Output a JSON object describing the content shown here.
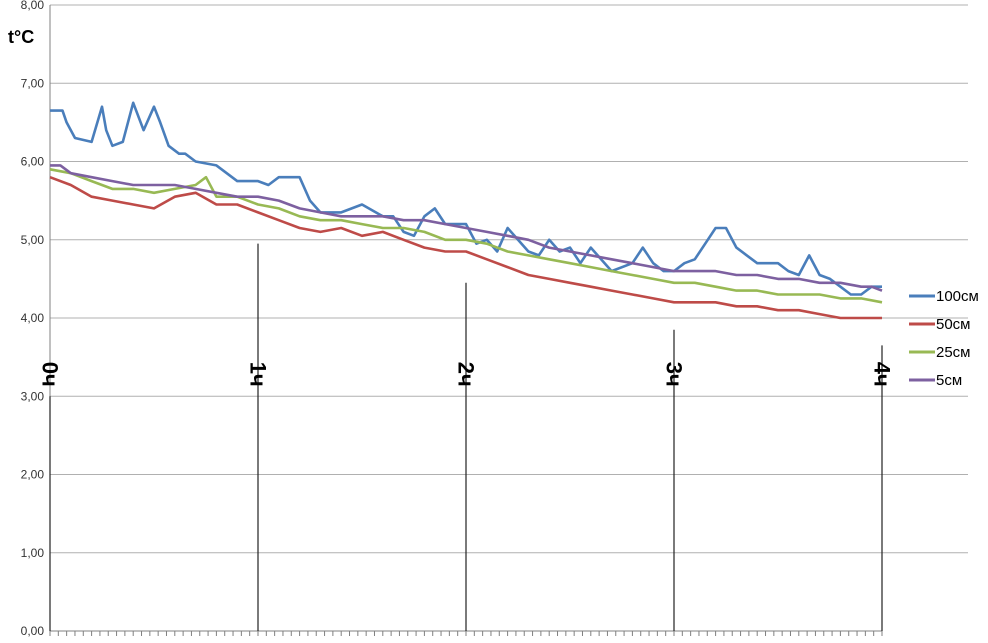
{
  "chart_data": {
    "type": "line",
    "ylabel": "t°C",
    "ylim": [
      0,
      8
    ],
    "ytick_labels": [
      "0,00",
      "1,00",
      "2,00",
      "3,00",
      "4,00",
      "5,00",
      "6,00",
      "7,00",
      "8,00"
    ],
    "xlim": [
      0,
      4
    ],
    "hour_markers": [
      {
        "label": "0ч",
        "x": 0,
        "top": 3.0
      },
      {
        "label": "1ч",
        "x": 1,
        "top": 4.95
      },
      {
        "label": "2ч",
        "x": 2,
        "top": 4.45
      },
      {
        "label": "3ч",
        "x": 3,
        "top": 3.85
      },
      {
        "label": "4ч",
        "x": 4,
        "top": 3.65
      }
    ],
    "legend_position": "right",
    "grid": true,
    "series": [
      {
        "name": "100см",
        "color": "#4a7ebb",
        "x": [
          0,
          0.06,
          0.08,
          0.12,
          0.2,
          0.25,
          0.27,
          0.3,
          0.35,
          0.4,
          0.45,
          0.5,
          0.53,
          0.57,
          0.62,
          0.65,
          0.7,
          0.8,
          0.9,
          1.0,
          1.05,
          1.1,
          1.2,
          1.25,
          1.3,
          1.4,
          1.5,
          1.6,
          1.65,
          1.7,
          1.75,
          1.8,
          1.85,
          1.9,
          2.0,
          2.05,
          2.1,
          2.15,
          2.2,
          2.3,
          2.35,
          2.4,
          2.45,
          2.5,
          2.55,
          2.6,
          2.7,
          2.8,
          2.85,
          2.9,
          2.95,
          3.0,
          3.05,
          3.1,
          3.15,
          3.2,
          3.25,
          3.3,
          3.35,
          3.4,
          3.5,
          3.55,
          3.6,
          3.65,
          3.7,
          3.75,
          3.8,
          3.85,
          3.9,
          3.95,
          4.0
        ],
        "values": [
          6.65,
          6.65,
          6.5,
          6.3,
          6.25,
          6.7,
          6.4,
          6.2,
          6.25,
          6.75,
          6.4,
          6.7,
          6.5,
          6.2,
          6.1,
          6.1,
          6.0,
          5.95,
          5.75,
          5.75,
          5.7,
          5.8,
          5.8,
          5.5,
          5.35,
          5.35,
          5.45,
          5.3,
          5.3,
          5.1,
          5.05,
          5.3,
          5.4,
          5.2,
          5.2,
          4.95,
          5.0,
          4.85,
          5.15,
          4.85,
          4.8,
          5.0,
          4.85,
          4.9,
          4.7,
          4.9,
          4.6,
          4.7,
          4.9,
          4.7,
          4.6,
          4.6,
          4.7,
          4.75,
          4.95,
          5.15,
          5.15,
          4.9,
          4.8,
          4.7,
          4.7,
          4.6,
          4.55,
          4.8,
          4.55,
          4.5,
          4.4,
          4.3,
          4.3,
          4.4,
          4.4
        ]
      },
      {
        "name": "50см",
        "color": "#be4b48",
        "x": [
          0,
          0.1,
          0.2,
          0.3,
          0.4,
          0.5,
          0.6,
          0.7,
          0.8,
          0.9,
          1.0,
          1.1,
          1.2,
          1.3,
          1.4,
          1.5,
          1.6,
          1.7,
          1.8,
          1.9,
          2.0,
          2.1,
          2.2,
          2.3,
          2.4,
          2.5,
          2.6,
          2.7,
          2.8,
          2.9,
          3.0,
          3.1,
          3.2,
          3.3,
          3.4,
          3.5,
          3.6,
          3.7,
          3.8,
          3.9,
          4.0
        ],
        "values": [
          5.8,
          5.7,
          5.55,
          5.5,
          5.45,
          5.4,
          5.55,
          5.6,
          5.45,
          5.45,
          5.35,
          5.25,
          5.15,
          5.1,
          5.15,
          5.05,
          5.1,
          5.0,
          4.9,
          4.85,
          4.85,
          4.75,
          4.65,
          4.55,
          4.5,
          4.45,
          4.4,
          4.35,
          4.3,
          4.25,
          4.2,
          4.2,
          4.2,
          4.15,
          4.15,
          4.1,
          4.1,
          4.05,
          4.0,
          4.0,
          4.0
        ]
      },
      {
        "name": "25см",
        "color": "#98b954",
        "x": [
          0,
          0.1,
          0.2,
          0.3,
          0.4,
          0.5,
          0.6,
          0.7,
          0.75,
          0.8,
          0.9,
          1.0,
          1.1,
          1.2,
          1.3,
          1.4,
          1.5,
          1.6,
          1.7,
          1.8,
          1.9,
          2.0,
          2.1,
          2.2,
          2.3,
          2.4,
          2.5,
          2.6,
          2.7,
          2.8,
          2.9,
          3.0,
          3.1,
          3.2,
          3.3,
          3.4,
          3.5,
          3.6,
          3.7,
          3.8,
          3.9,
          4.0
        ],
        "values": [
          5.9,
          5.85,
          5.75,
          5.65,
          5.65,
          5.6,
          5.65,
          5.7,
          5.8,
          5.55,
          5.55,
          5.45,
          5.4,
          5.3,
          5.25,
          5.25,
          5.2,
          5.15,
          5.15,
          5.1,
          5.0,
          5.0,
          4.95,
          4.85,
          4.8,
          4.75,
          4.7,
          4.65,
          4.6,
          4.55,
          4.5,
          4.45,
          4.45,
          4.4,
          4.35,
          4.35,
          4.3,
          4.3,
          4.3,
          4.25,
          4.25,
          4.2
        ]
      },
      {
        "name": "5см",
        "color": "#7d60a0",
        "x": [
          0,
          0.05,
          0.1,
          0.2,
          0.3,
          0.4,
          0.5,
          0.6,
          0.7,
          0.8,
          0.9,
          1.0,
          1.1,
          1.2,
          1.3,
          1.4,
          1.5,
          1.6,
          1.7,
          1.8,
          1.9,
          2.0,
          2.1,
          2.2,
          2.3,
          2.4,
          2.5,
          2.6,
          2.7,
          2.8,
          2.9,
          3.0,
          3.1,
          3.2,
          3.3,
          3.4,
          3.5,
          3.6,
          3.7,
          3.8,
          3.9,
          3.95,
          4.0
        ],
        "values": [
          5.95,
          5.95,
          5.85,
          5.8,
          5.75,
          5.7,
          5.7,
          5.7,
          5.65,
          5.6,
          5.55,
          5.55,
          5.5,
          5.4,
          5.35,
          5.3,
          5.3,
          5.3,
          5.25,
          5.25,
          5.2,
          5.15,
          5.1,
          5.05,
          5.0,
          4.9,
          4.85,
          4.8,
          4.75,
          4.7,
          4.65,
          4.6,
          4.6,
          4.6,
          4.55,
          4.55,
          4.5,
          4.5,
          4.45,
          4.45,
          4.4,
          4.4,
          4.35
        ]
      }
    ]
  }
}
